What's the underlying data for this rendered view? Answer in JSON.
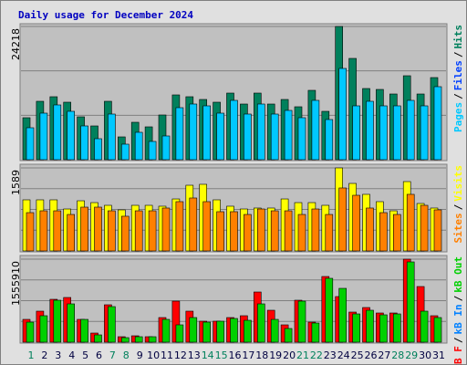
{
  "chart_data": [
    {
      "type": "bar",
      "title": "Daily usage for December 2024",
      "ylim": [
        0,
        24218
      ],
      "yticks": [
        24218
      ],
      "grid": true,
      "legend_separator": "/",
      "legend_reversed": true,
      "series": [
        {
          "name": "Hits",
          "color": "#00805c",
          "values": [
            7630,
            10616,
            11446,
            10450,
            7796,
            6137,
            10616,
            4147,
            6801,
            5972,
            8128,
            11777,
            11446,
            10948,
            10450,
            12109,
            10118,
            12109,
            10118,
            10948,
            9621,
            12607,
            8791,
            24218,
            18412,
            12938,
            12772,
            11943,
            15261,
            11943,
            14929
          ]
        },
        {
          "name": "Files",
          "color": "#0040ff",
          "values": [
            null,
            null,
            null,
            null,
            null,
            null,
            null,
            null,
            null,
            null,
            null,
            null,
            null,
            null,
            null,
            null,
            null,
            null,
            null,
            null,
            null,
            null,
            null,
            null,
            null,
            null,
            null,
            null,
            null,
            null,
            null
          ]
        },
        {
          "name": "Pages",
          "color": "#00c8ff",
          "values": [
            5806,
            8460,
            9953,
            8791,
            6137,
            3815,
            8294,
            2820,
            4976,
            3318,
            4313,
            9455,
            10118,
            9787,
            8460,
            10782,
            8294,
            10118,
            8294,
            8957,
            7630,
            10782,
            7299,
            16588,
            9787,
            10616,
            9787,
            9787,
            10782,
            9787,
            13270
          ]
        }
      ]
    },
    {
      "type": "bar",
      "ylim": [
        0,
        1589
      ],
      "yticks": [
        1589
      ],
      "grid": true,
      "legend_separator": "/",
      "legend_reversed": true,
      "series": [
        {
          "name": "Visits",
          "color": "#ffff00",
          "values": [
            978,
            978,
            978,
            803,
            960,
            925,
            873,
            786,
            873,
            873,
            856,
            995,
            1257,
            1275,
            978,
            856,
            803,
            821,
            821,
            995,
            925,
            925,
            873,
            1589,
            1292,
            1083,
            943,
            768,
            1327,
            908,
            821
          ]
        },
        {
          "name": "Sites",
          "color": "#ff8000",
          "values": [
            733,
            768,
            768,
            698,
            838,
            838,
            768,
            664,
            768,
            768,
            821,
            943,
            1013,
            943,
            751,
            751,
            698,
            803,
            768,
            768,
            698,
            803,
            698,
            1205,
            1065,
            821,
            733,
            698,
            1083,
            873,
            786
          ]
        }
      ]
    },
    {
      "type": "bar",
      "ylim": [
        0,
        1555910
      ],
      "yticks": [
        1555910
      ],
      "grid": true,
      "legend_separator": "/",
      "legend_reversed": false,
      "categories": [
        "1",
        "2",
        "3",
        "4",
        "5",
        "6",
        "7",
        "8",
        "9",
        "10",
        "11",
        "12",
        "13",
        "14",
        "15",
        "16",
        "17",
        "18",
        "19",
        "20",
        "21",
        "22",
        "23",
        "24",
        "25",
        "26",
        "27",
        "28",
        "29",
        "30",
        "31"
      ],
      "weekend": [
        true,
        false,
        false,
        false,
        false,
        false,
        true,
        true,
        false,
        false,
        false,
        false,
        false,
        true,
        true,
        false,
        false,
        false,
        false,
        false,
        true,
        true,
        false,
        false,
        false,
        false,
        false,
        true,
        true,
        false,
        false
      ],
      "weekend_color": "#00805c",
      "series": [
        {
          "name": "kB F",
          "color": "#ff0000",
          "values": [
            427448,
            581328,
            803593,
            837789,
            427448,
            170979,
            701014,
            102588,
            119685,
            102588,
            461644,
            769396,
            581328,
            393252,
            393252,
            461644,
            495840,
            940387,
            598426,
            324860,
            786495,
            376154,
            1231047,
            854887,
            564230,
            649721,
            547133,
            547133,
            1555910,
            1042972,
            495840
          ]
        },
        {
          "name": "kB In",
          "color": "#0080ff",
          "values": [
            null,
            null,
            null,
            null,
            null,
            null,
            null,
            null,
            null,
            null,
            null,
            null,
            null,
            null,
            null,
            null,
            null,
            null,
            null,
            null,
            null,
            null,
            null,
            null,
            null,
            null,
            null,
            null,
            null,
            null,
            null
          ]
        },
        {
          "name": "kB Out",
          "color": "#00d000",
          "values": [
            376154,
            495840,
            786495,
            718112,
            427448,
            136784,
            666819,
            85490,
            102588,
            102588,
            427448,
            324860,
            461644,
            376154,
            393252,
            444547,
            410349,
            718112,
            427448,
            256468,
            769396,
            359056,
            1196852,
            1008777,
            530035,
            598426,
            512937,
            530035,
            1504616,
            581328,
            461644
          ]
        }
      ]
    }
  ]
}
